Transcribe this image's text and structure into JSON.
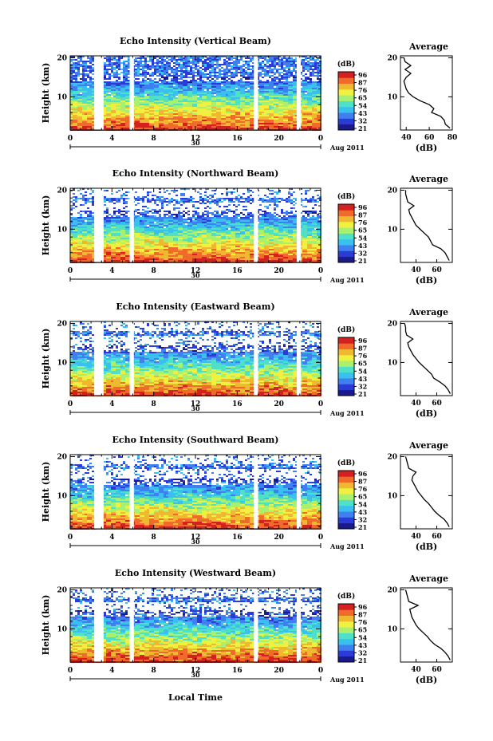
{
  "figure": {
    "xlabel": "Local Time",
    "date_label": "Aug 2011",
    "colorbar_unit": "(dB)",
    "colorbar_ticks": [
      "96",
      "87",
      "76",
      "65",
      "54",
      "43",
      "32",
      "21"
    ],
    "colormap": [
      "#1a1a8c",
      "#2a3bd6",
      "#3f7ff0",
      "#39c0f0",
      "#4fe0c8",
      "#a8f070",
      "#f0f040",
      "#f0b830",
      "#f06b2a",
      "#d42020"
    ]
  },
  "chart_data": [
    {
      "type": "heatmap",
      "title": "Echo Intensity (Vertical Beam)",
      "ylabel": "Height (km)",
      "x_ticks": [
        "0",
        "4",
        "8",
        "12",
        "16",
        "20",
        "0"
      ],
      "day_label": "30",
      "y_ticks": [
        "10",
        "20"
      ],
      "xlim": [
        0,
        24
      ],
      "ylim": [
        1.5,
        20.5
      ],
      "gaps_hours": [
        [
          2.3,
          3.2
        ],
        [
          5.7,
          6.1
        ],
        [
          17.6,
          18.0
        ],
        [
          21.7,
          22.1
        ]
      ],
      "profile": {
        "title": "Average",
        "xlabel": "(dB)",
        "x_ticks": [
          "40",
          "60",
          "80"
        ],
        "xlim": [
          35,
          80
        ],
        "y_ticks": [
          "10",
          "20"
        ],
        "height_km": [
          2,
          3,
          4,
          5,
          6,
          7,
          8,
          9,
          10,
          11,
          12,
          13,
          14,
          15,
          16,
          17,
          18,
          19,
          20
        ],
        "mean_db": [
          78,
          74,
          73,
          70,
          62,
          64,
          60,
          52,
          46,
          42,
          40,
          39,
          38,
          40,
          44,
          39,
          44,
          39,
          38
        ]
      }
    },
    {
      "type": "heatmap",
      "title": "Echo Intensity (Northward Beam)",
      "ylabel": "Height (km)",
      "x_ticks": [
        "0",
        "4",
        "8",
        "12",
        "16",
        "20",
        "0"
      ],
      "day_label": "30",
      "y_ticks": [
        "10",
        "20"
      ],
      "xlim": [
        0,
        24
      ],
      "ylim": [
        1.5,
        20.5
      ],
      "gaps_hours": [
        [
          2.3,
          3.2
        ],
        [
          5.7,
          6.1
        ],
        [
          17.6,
          18.0
        ],
        [
          21.7,
          22.1
        ]
      ],
      "profile": {
        "title": "Average",
        "xlabel": "(dB)",
        "x_ticks": [
          "40",
          "60"
        ],
        "xlim": [
          25,
          75
        ],
        "y_ticks": [
          "10",
          "20"
        ],
        "height_km": [
          2,
          3,
          4,
          5,
          6,
          7,
          8,
          9,
          10,
          11,
          12,
          13,
          14,
          15,
          16,
          17,
          18,
          19,
          20
        ],
        "mean_db": [
          72,
          70,
          68,
          64,
          56,
          54,
          52,
          48,
          44,
          40,
          38,
          36,
          34,
          33,
          38,
          32,
          31,
          30,
          30
        ]
      }
    },
    {
      "type": "heatmap",
      "title": "Echo Intensity (Eastward Beam)",
      "ylabel": "Height (km)",
      "x_ticks": [
        "0",
        "4",
        "8",
        "12",
        "16",
        "20",
        "0"
      ],
      "day_label": "30",
      "y_ticks": [
        "10",
        "20"
      ],
      "xlim": [
        0,
        24
      ],
      "ylim": [
        1.5,
        20.5
      ],
      "gaps_hours": [
        [
          2.3,
          3.2
        ],
        [
          5.7,
          6.1
        ],
        [
          17.6,
          18.0
        ],
        [
          21.7,
          22.1
        ]
      ],
      "profile": {
        "title": "Average",
        "xlabel": "(dB)",
        "x_ticks": [
          "40",
          "60"
        ],
        "xlim": [
          25,
          75
        ],
        "y_ticks": [
          "10",
          "20"
        ],
        "height_km": [
          2,
          3,
          4,
          5,
          6,
          7,
          8,
          9,
          10,
          11,
          12,
          13,
          14,
          15,
          16,
          17,
          18,
          19,
          20
        ],
        "mean_db": [
          73,
          71,
          68,
          63,
          57,
          55,
          51,
          47,
          43,
          40,
          37,
          35,
          33,
          32,
          37,
          31,
          30,
          30,
          29
        ]
      }
    },
    {
      "type": "heatmap",
      "title": "Echo Intensity (Southward Beam)",
      "ylabel": "Height (km)",
      "x_ticks": [
        "0",
        "4",
        "8",
        "12",
        "16",
        "20",
        "0"
      ],
      "day_label": "30",
      "y_ticks": [
        "10",
        "20"
      ],
      "xlim": [
        0,
        24
      ],
      "ylim": [
        1.5,
        20.5
      ],
      "gaps_hours": [
        [
          2.3,
          3.2
        ],
        [
          5.7,
          6.1
        ],
        [
          17.6,
          18.0
        ],
        [
          21.7,
          22.1
        ]
      ],
      "profile": {
        "title": "Average",
        "xlabel": "(dB)",
        "x_ticks": [
          "40",
          "60"
        ],
        "xlim": [
          25,
          75
        ],
        "y_ticks": [
          "10",
          "20"
        ],
        "height_km": [
          2,
          3,
          4,
          5,
          6,
          7,
          8,
          9,
          10,
          11,
          12,
          13,
          14,
          15,
          16,
          17,
          18,
          19,
          20
        ],
        "mean_db": [
          72,
          70,
          67,
          62,
          58,
          55,
          52,
          48,
          45,
          42,
          40,
          38,
          36,
          37,
          40,
          33,
          32,
          31,
          30
        ]
      }
    },
    {
      "type": "heatmap",
      "title": "Echo Intensity (Westward Beam)",
      "ylabel": "Height (km)",
      "x_ticks": [
        "0",
        "4",
        "8",
        "12",
        "16",
        "20",
        "0"
      ],
      "day_label": "30",
      "y_ticks": [
        "10",
        "20"
      ],
      "xlim": [
        0,
        24
      ],
      "ylim": [
        1.5,
        20.5
      ],
      "gaps_hours": [
        [
          2.3,
          3.2
        ],
        [
          5.7,
          6.1
        ],
        [
          17.6,
          18.0
        ],
        [
          21.7,
          22.1
        ]
      ],
      "profile": {
        "title": "Average",
        "xlabel": "(dB)",
        "x_ticks": [
          "40",
          "60"
        ],
        "xlim": [
          25,
          75
        ],
        "y_ticks": [
          "10",
          "20"
        ],
        "height_km": [
          2,
          3,
          4,
          5,
          6,
          7,
          8,
          9,
          10,
          11,
          12,
          13,
          14,
          15,
          16,
          17,
          18,
          19,
          20
        ],
        "mean_db": [
          73,
          71,
          68,
          64,
          58,
          54,
          51,
          47,
          43,
          40,
          38,
          36,
          35,
          34,
          42,
          33,
          32,
          31,
          30
        ]
      }
    }
  ]
}
